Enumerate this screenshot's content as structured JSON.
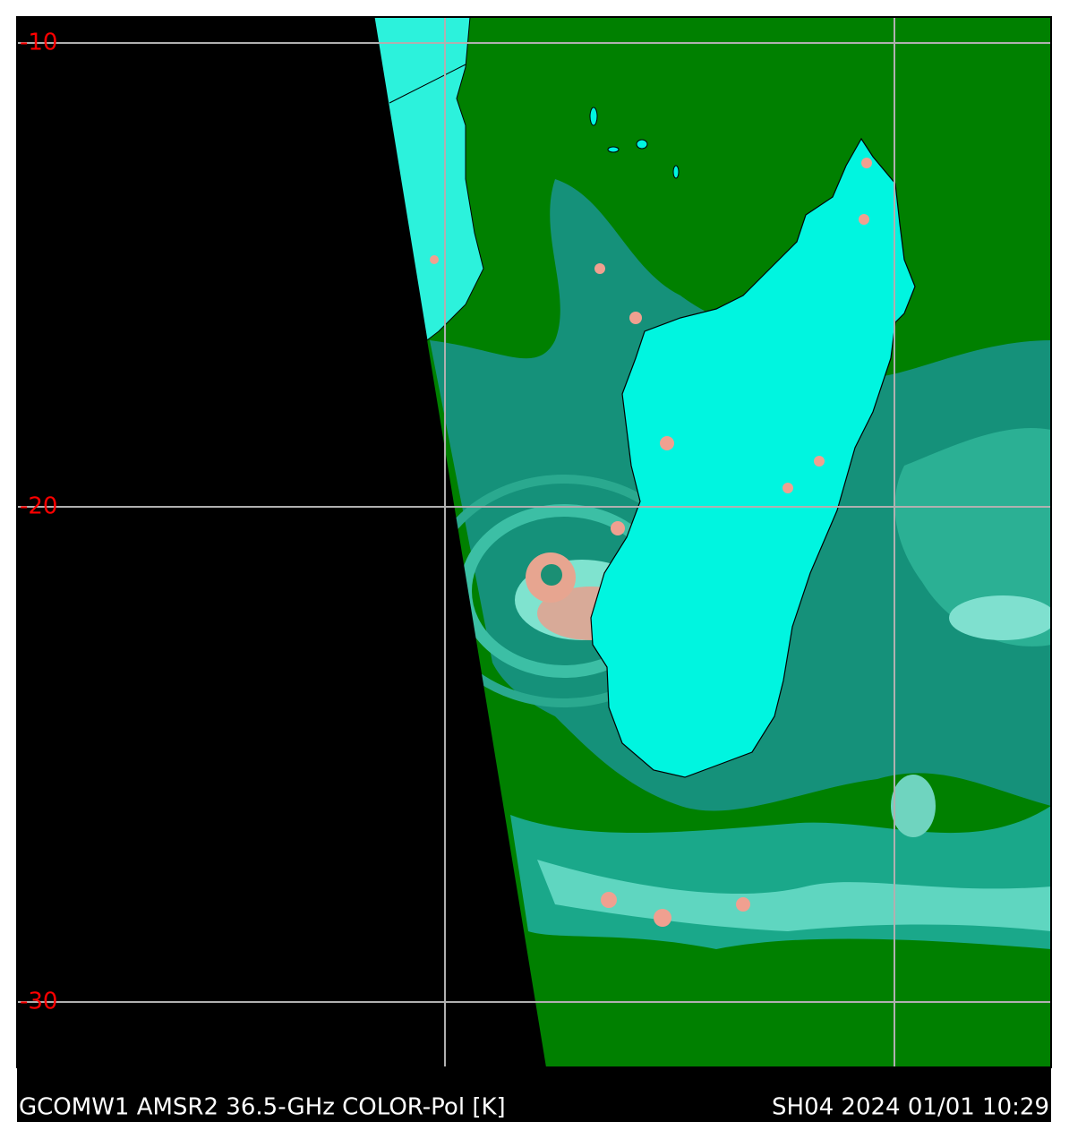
{
  "map": {
    "latitude_labels": [
      "-10",
      "-20",
      "-30"
    ],
    "caption_left": "GCOMW1 AMSR2 36.5-GHz COLOR-Pol [K]",
    "caption_right": "SH04 2024 01/01 10:29"
  }
}
